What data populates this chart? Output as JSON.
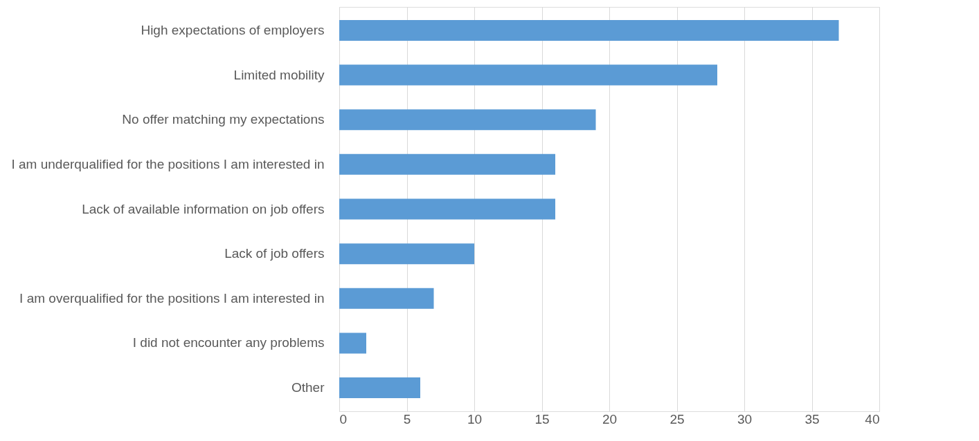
{
  "chart_data": {
    "type": "bar",
    "orientation": "horizontal",
    "categories": [
      "High expectations of employers",
      "Limited mobility",
      "No offer matching my expectations",
      "I am underqualified for the positions I am interested in",
      "Lack of available information on job offers",
      "Lack of job offers",
      "I am overqualified for the positions I am interested in",
      "I did not encounter any problems",
      "Other"
    ],
    "values": [
      37,
      28,
      19,
      16,
      16,
      10,
      7,
      2,
      6
    ],
    "color": "#5b9bd5",
    "xlim": [
      0,
      40
    ],
    "xticks": [
      0,
      5,
      10,
      15,
      20,
      25,
      30,
      35,
      40
    ],
    "grid": "x"
  }
}
